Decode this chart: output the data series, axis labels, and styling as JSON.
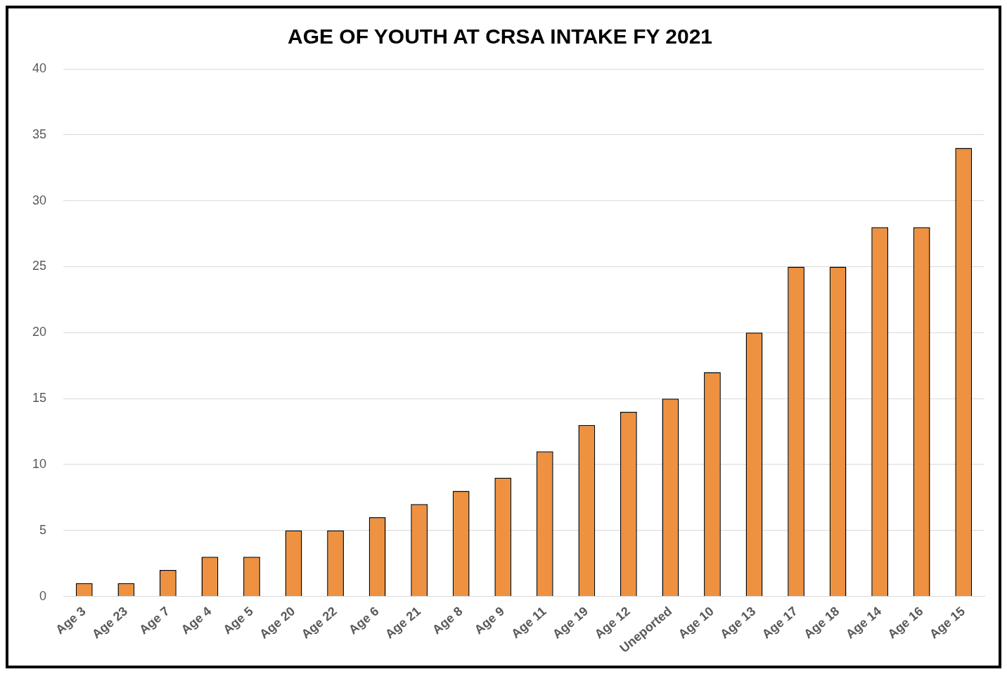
{
  "chart_data": {
    "type": "bar",
    "title": "AGE OF YOUTH AT CRSA INTAKE FY 2021",
    "categories": [
      "Age 3",
      "Age 23",
      "Age 7",
      "Age 4",
      "Age 5",
      "Age 20",
      "Age 22",
      "Age 6",
      "Age 21",
      "Age 8",
      "Age 9",
      "Age 11",
      "Age 19",
      "Age 12",
      "Uneported",
      "Age 10",
      "Age 13",
      "Age 17",
      "Age 18",
      "Age 14",
      "Age 16",
      "Age 15"
    ],
    "values": [
      1,
      1,
      2,
      3,
      3,
      5,
      5,
      6,
      7,
      8,
      9,
      11,
      13,
      14,
      15,
      17,
      20,
      25,
      25,
      28,
      28,
      34
    ],
    "color": "#ee9140",
    "ylim": [
      0,
      40
    ],
    "yticks": [
      0,
      5,
      10,
      15,
      20,
      25,
      30,
      35,
      40
    ],
    "grid": "y",
    "legend": false
  }
}
